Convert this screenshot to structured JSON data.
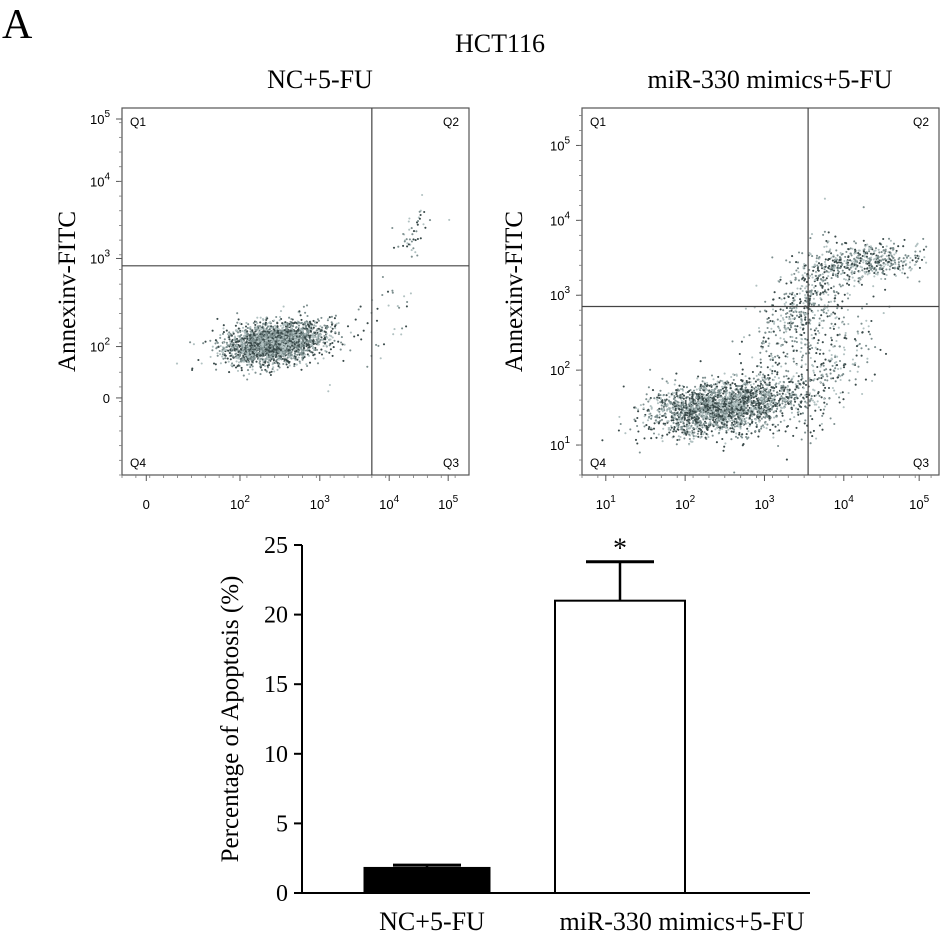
{
  "figure": {
    "panel_letter": "A",
    "cell_line": "HCT116"
  },
  "chart_data": [
    {
      "type": "scatter",
      "title": "NC+5-FU",
      "ylabel": "Annexinv-FITC",
      "xlabel": "",
      "x_ticks": [
        {
          "base": "0",
          "exp": ""
        },
        {
          "base": "10",
          "exp": "2"
        },
        {
          "base": "10",
          "exp": "3"
        },
        {
          "base": "10",
          "exp": "4"
        },
        {
          "base": "10",
          "exp": "5"
        }
      ],
      "y_ticks": [
        {
          "base": "0",
          "exp": ""
        },
        {
          "base": "10",
          "exp": "2"
        },
        {
          "base": "10",
          "exp": "3"
        },
        {
          "base": "10",
          "exp": "4"
        },
        {
          "base": "10",
          "exp": "5"
        }
      ],
      "quadrants": [
        "Q1",
        "Q2",
        "Q3",
        "Q4"
      ],
      "xlim": [
        0,
        5
      ],
      "ylim": [
        0,
        5
      ],
      "gate_x": 3.6,
      "gate_y": 2.85,
      "populations": [
        {
          "cx": 2.2,
          "cy": 1.8,
          "sx": 0.35,
          "sy": 0.14,
          "n": 2600,
          "corr": 0.3
        },
        {
          "cx": 4.2,
          "cy": 3.3,
          "sx": 0.12,
          "sy": 0.2,
          "n": 45,
          "corr": 0.4
        },
        {
          "cx": 3.8,
          "cy": 2.1,
          "sx": 0.3,
          "sy": 0.4,
          "n": 40,
          "corr": 0.6
        }
      ]
    },
    {
      "type": "scatter",
      "title": "miR-330 mimics+5-FU",
      "ylabel": "Annexinv-FITC",
      "xlabel": "",
      "x_ticks": [
        {
          "base": "10",
          "exp": "1"
        },
        {
          "base": "10",
          "exp": "2"
        },
        {
          "base": "10",
          "exp": "3"
        },
        {
          "base": "10",
          "exp": "4"
        },
        {
          "base": "10",
          "exp": "5"
        }
      ],
      "y_ticks": [
        {
          "base": "10",
          "exp": "1"
        },
        {
          "base": "10",
          "exp": "2"
        },
        {
          "base": "10",
          "exp": "3"
        },
        {
          "base": "10",
          "exp": "4"
        },
        {
          "base": "10",
          "exp": "5"
        }
      ],
      "quadrants": [
        "Q1",
        "Q2",
        "Q3",
        "Q4"
      ],
      "xlim": [
        0.7,
        5.2
      ],
      "ylim": [
        0.6,
        5.5
      ],
      "gate_x": 3.55,
      "gate_y": 2.85,
      "populations": [
        {
          "cx": 2.45,
          "cy": 1.5,
          "sx": 0.45,
          "sy": 0.18,
          "n": 2300,
          "corr": 0.3
        },
        {
          "cx": 4.3,
          "cy": 3.45,
          "sx": 0.35,
          "sy": 0.12,
          "n": 450,
          "corr": 0.3
        },
        {
          "cx": 3.5,
          "cy": 2.9,
          "sx": 0.3,
          "sy": 0.4,
          "n": 500,
          "corr": 0.65
        },
        {
          "cx": 3.7,
          "cy": 2.0,
          "sx": 0.35,
          "sy": 0.45,
          "n": 350,
          "corr": 0.5
        }
      ]
    },
    {
      "type": "bar",
      "categories": [
        "NC+5-FU",
        "miR-330 mimics+5-FU"
      ],
      "values": [
        1.8,
        21.0
      ],
      "errors": [
        0.2,
        2.8
      ],
      "significance": [
        "",
        "*"
      ],
      "bar_colors": [
        "#000000",
        "#ffffff"
      ],
      "ylabel": "Percentage of Apoptosis (%)",
      "xlabel": "",
      "ylim": [
        0,
        25
      ],
      "yticks": [
        0,
        5,
        10,
        15,
        20,
        25
      ]
    }
  ]
}
